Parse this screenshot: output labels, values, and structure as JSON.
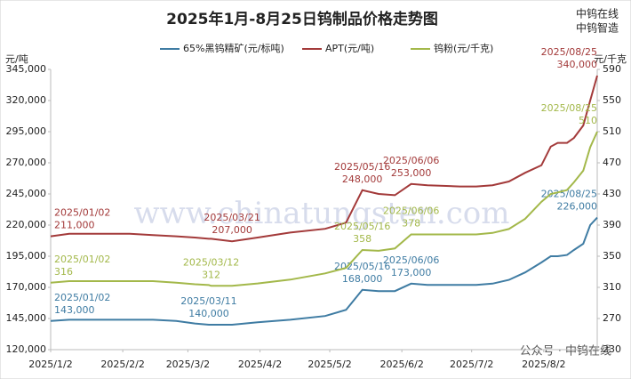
{
  "chart_data": {
    "type": "line",
    "title": "2025年1月-8月25日钨制品价格走势图",
    "brand": [
      "中钨在线",
      "中钨智造"
    ],
    "watermark": "www.chinatungsten.com",
    "footer_note": "公众号 · 中钨在线",
    "ylabel": "元/吨",
    "y2label": "元/千克",
    "x": [
      "2025-01-02",
      "2025-01-10",
      "2025-01-20",
      "2025-02-05",
      "2025-02-15",
      "2025-02-25",
      "2025-03-05",
      "2025-03-11",
      "2025-03-12",
      "2025-03-21",
      "2025-04-01",
      "2025-04-15",
      "2025-04-30",
      "2025-05-09",
      "2025-05-16",
      "2025-05-23",
      "2025-05-30",
      "2025-06-06",
      "2025-06-13",
      "2025-06-27",
      "2025-07-04",
      "2025-07-11",
      "2025-07-18",
      "2025-07-25",
      "2025-08-01",
      "2025-08-05",
      "2025-08-08",
      "2025-08-12",
      "2025-08-15",
      "2025-08-19",
      "2025-08-22",
      "2025-08-25"
    ],
    "xlim": [
      "2025-01-02",
      "2025-08-25"
    ],
    "xticks": [
      {
        "value": "2025-01-02",
        "label": "2025/1/2"
      },
      {
        "value": "2025-02-02",
        "label": "2025/2/2"
      },
      {
        "value": "2025-03-02",
        "label": "2025/3/2"
      },
      {
        "value": "2025-04-02",
        "label": "2025/4/2"
      },
      {
        "value": "2025-05-02",
        "label": "2025/5/2"
      },
      {
        "value": "2025-06-02",
        "label": "2025/6/2"
      },
      {
        "value": "2025-07-02",
        "label": "2025/7/2"
      },
      {
        "value": "2025-08-02",
        "label": "2025/8/2"
      }
    ],
    "ylim": [
      120000,
      345000
    ],
    "yticks": [
      {
        "value": 120000,
        "label": "120,000"
      },
      {
        "value": 145000,
        "label": "145,000"
      },
      {
        "value": 170000,
        "label": "170,000"
      },
      {
        "value": 195000,
        "label": "195,000"
      },
      {
        "value": 220000,
        "label": "220,000"
      },
      {
        "value": 245000,
        "label": "245,000"
      },
      {
        "value": 270000,
        "label": "270,000"
      },
      {
        "value": 295000,
        "label": "295,000"
      },
      {
        "value": 320000,
        "label": "320,000"
      },
      {
        "value": 345000,
        "label": "345,000"
      }
    ],
    "y2lim": [
      230,
      590
    ],
    "y2ticks": [
      230,
      270,
      310,
      350,
      390,
      430,
      470,
      510,
      550,
      590
    ],
    "series": [
      {
        "name": "65%黑钨精矿(元/标吨)",
        "color": "#3f7ca3",
        "values": [
          143000,
          144000,
          144000,
          144000,
          144000,
          143000,
          141000,
          140000,
          140000,
          140000,
          142000,
          144000,
          147000,
          152000,
          168000,
          167000,
          167000,
          173000,
          172000,
          172000,
          172000,
          173000,
          176000,
          182000,
          190000,
          195000,
          195000,
          196000,
          200000,
          205000,
          220000,
          226000
        ],
        "annotations": [
          {
            "x": "2025/01/02",
            "value": 143000,
            "label": "143,000"
          },
          {
            "x": "2025/03/11",
            "value": 140000,
            "label": "140,000"
          },
          {
            "x": "2025/05/16",
            "value": 168000,
            "label": "168,000"
          },
          {
            "x": "2025/06/06",
            "value": 173000,
            "label": "173,000"
          },
          {
            "x": "2025/08/25",
            "value": 226000,
            "label": "226,000"
          }
        ]
      },
      {
        "name": "APT(元/吨)",
        "color": "#a33a3a",
        "values": [
          211000,
          213000,
          213000,
          213000,
          212000,
          211000,
          210000,
          209000,
          209000,
          207000,
          210000,
          214000,
          217000,
          222000,
          248000,
          245000,
          244000,
          253000,
          252000,
          251000,
          251000,
          252000,
          255000,
          262000,
          268000,
          283000,
          286000,
          286000,
          290000,
          300000,
          320000,
          340000
        ],
        "annotations": [
          {
            "x": "2025/01/02",
            "value": 211000,
            "label": "211,000"
          },
          {
            "x": "2025/03/21",
            "value": 207000,
            "label": "207,000"
          },
          {
            "x": "2025/05/16",
            "value": 248000,
            "label": "248,000"
          },
          {
            "x": "2025/06/06",
            "value": 253000,
            "label": "253,000"
          },
          {
            "x": "2025/08/25",
            "value": 340000,
            "label": "340,000"
          }
        ]
      },
      {
        "name": "钨粉(元/千克)",
        "color": "#a3b84a",
        "axis": "y2",
        "values": [
          316,
          318,
          318,
          318,
          318,
          316,
          314,
          313,
          312,
          312,
          315,
          320,
          328,
          335,
          358,
          357,
          360,
          378,
          378,
          378,
          378,
          380,
          385,
          398,
          420,
          430,
          432,
          435,
          445,
          460,
          490,
          510
        ],
        "annotations": [
          {
            "x": "2025/01/02",
            "value": 316
          },
          {
            "x": "2025/03/12",
            "value": 312
          },
          {
            "x": "2025/05/16",
            "value": 358
          },
          {
            "x": "2025/06/06",
            "value": 378
          },
          {
            "x": "2025/08/25",
            "value": 510
          }
        ]
      }
    ]
  }
}
